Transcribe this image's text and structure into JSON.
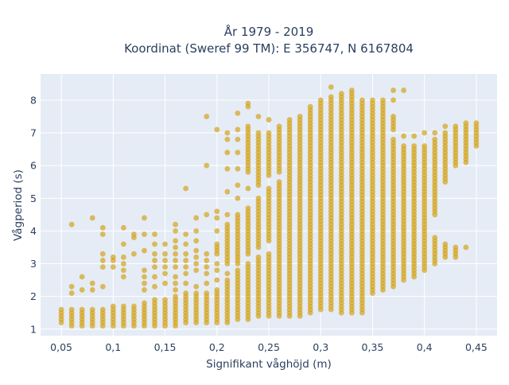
{
  "chart_data": {
    "type": "scatter",
    "title_line1": "År 1979 - 2019",
    "title_line2": "Koordinat (Sweref 99 TM): E 356747, N 6167804",
    "xlabel": "Signifikant våghöjd (m)",
    "ylabel": "Vågperiod (s)",
    "xlim": [
      0.03,
      0.47
    ],
    "ylim": [
      0.8,
      8.8
    ],
    "x_ticks": [
      0.05,
      0.1,
      0.15,
      0.2,
      0.25,
      0.3,
      0.35,
      0.4,
      0.45
    ],
    "x_tick_labels": [
      "0,05",
      "0,1",
      "0,15",
      "0,2",
      "0,25",
      "0,3",
      "0,35",
      "0,4",
      "0,45"
    ],
    "y_ticks": [
      1,
      2,
      3,
      4,
      5,
      6,
      7,
      8
    ],
    "y_tick_labels": [
      "1",
      "2",
      "3",
      "4",
      "5",
      "6",
      "7",
      "8"
    ],
    "grid": true,
    "marker_color": "#d4a520",
    "plot_background": "#e5ecf6",
    "columns": [
      {
        "x": 0.05,
        "segments": [
          [
            1.2,
            1.6
          ]
        ],
        "extra": []
      },
      {
        "x": 0.06,
        "segments": [
          [
            1.1,
            1.6
          ]
        ],
        "extra": [
          2.1,
          2.3,
          4.2
        ]
      },
      {
        "x": 0.07,
        "segments": [
          [
            1.1,
            1.6
          ]
        ],
        "extra": [
          2.2,
          2.6
        ]
      },
      {
        "x": 0.08,
        "segments": [
          [
            1.1,
            1.6
          ]
        ],
        "extra": [
          2.2,
          2.4,
          4.4
        ]
      },
      {
        "x": 0.09,
        "segments": [
          [
            1.1,
            1.6
          ]
        ],
        "extra": [
          2.3,
          2.9,
          3.1,
          3.3,
          3.9,
          4.1
        ]
      },
      {
        "x": 0.1,
        "segments": [
          [
            1.1,
            1.7
          ]
        ],
        "extra": [
          2.9,
          3.1,
          3.2
        ]
      },
      {
        "x": 0.11,
        "segments": [
          [
            1.1,
            1.7
          ]
        ],
        "extra": [
          2.6,
          2.8,
          3.0,
          3.2,
          3.6,
          4.1
        ]
      },
      {
        "x": 0.12,
        "segments": [
          [
            1.1,
            1.7
          ]
        ],
        "extra": [
          3.3,
          3.8,
          3.9
        ]
      },
      {
        "x": 0.13,
        "segments": [
          [
            1.1,
            1.8
          ]
        ],
        "extra": [
          2.2,
          2.4,
          2.6,
          2.8,
          3.4,
          3.9,
          4.4
        ]
      },
      {
        "x": 0.14,
        "segments": [
          [
            1.1,
            1.9
          ]
        ],
        "extra": [
          2.3,
          2.6,
          2.9,
          3.1,
          3.3,
          3.6,
          3.9
        ]
      },
      {
        "x": 0.15,
        "segments": [
          [
            1.1,
            1.9
          ]
        ],
        "extra": [
          2.4,
          2.7,
          2.9,
          3.1,
          3.3,
          3.6
        ]
      },
      {
        "x": 0.16,
        "segments": [
          [
            1.1,
            2.0
          ]
        ],
        "extra": [
          2.2,
          2.4,
          2.6,
          2.9,
          3.1,
          3.3,
          3.5,
          3.7,
          4.0,
          4.2
        ]
      },
      {
        "x": 0.17,
        "segments": [
          [
            1.2,
            2.1
          ]
        ],
        "extra": [
          2.4,
          2.7,
          2.9,
          3.1,
          3.3,
          3.6,
          3.9,
          5.3
        ]
      },
      {
        "x": 0.18,
        "segments": [
          [
            1.2,
            2.1
          ]
        ],
        "extra": [
          2.3,
          2.8,
          3.0,
          3.2,
          3.4,
          3.7,
          4.0,
          4.4
        ]
      },
      {
        "x": 0.19,
        "segments": [
          [
            1.2,
            2.1
          ]
        ],
        "extra": [
          2.4,
          2.7,
          2.9,
          3.1,
          3.3,
          4.5,
          6.0,
          7.5
        ]
      },
      {
        "x": 0.2,
        "segments": [
          [
            1.2,
            2.2
          ],
          [
            3.3,
            3.6
          ]
        ],
        "extra": [
          2.5,
          2.8,
          3.0,
          4.0,
          4.4,
          4.6,
          7.1
        ]
      },
      {
        "x": 0.21,
        "segments": [
          [
            1.2,
            2.5
          ],
          [
            3.0,
            4.2
          ]
        ],
        "extra": [
          2.7,
          4.5,
          5.2,
          5.9,
          6.4,
          6.8,
          7.0
        ]
      },
      {
        "x": 0.22,
        "segments": [
          [
            1.3,
            2.8
          ],
          [
            3.0,
            4.5
          ]
        ],
        "extra": [
          5.0,
          5.4,
          5.9,
          6.4,
          6.8,
          7.1,
          7.6
        ]
      },
      {
        "x": 0.23,
        "segments": [
          [
            1.3,
            3.0
          ],
          [
            3.3,
            4.7
          ],
          [
            5.8,
            7.2
          ]
        ],
        "extra": [
          5.3,
          7.8,
          7.9
        ]
      },
      {
        "x": 0.24,
        "segments": [
          [
            1.4,
            3.2
          ],
          [
            3.5,
            5.0
          ],
          [
            5.4,
            7.0
          ]
        ],
        "extra": [
          7.5
        ]
      },
      {
        "x": 0.25,
        "segments": [
          [
            1.4,
            3.3
          ],
          [
            3.7,
            5.3
          ],
          [
            5.7,
            7.0
          ]
        ],
        "extra": [
          7.4
        ]
      },
      {
        "x": 0.26,
        "segments": [
          [
            1.4,
            5.5
          ],
          [
            5.8,
            7.2
          ]
        ],
        "extra": []
      },
      {
        "x": 0.27,
        "segments": [
          [
            1.4,
            7.4
          ]
        ],
        "extra": []
      },
      {
        "x": 0.28,
        "segments": [
          [
            1.4,
            7.5
          ]
        ],
        "extra": []
      },
      {
        "x": 0.29,
        "segments": [
          [
            1.5,
            7.8
          ]
        ],
        "extra": []
      },
      {
        "x": 0.3,
        "segments": [
          [
            1.6,
            8.0
          ]
        ],
        "extra": []
      },
      {
        "x": 0.31,
        "segments": [
          [
            1.6,
            8.1
          ]
        ],
        "extra": [
          8.4
        ]
      },
      {
        "x": 0.32,
        "segments": [
          [
            1.5,
            8.2
          ]
        ],
        "extra": []
      },
      {
        "x": 0.33,
        "segments": [
          [
            1.5,
            8.3
          ]
        ],
        "extra": []
      },
      {
        "x": 0.34,
        "segments": [
          [
            1.5,
            8.0
          ]
        ],
        "extra": []
      },
      {
        "x": 0.35,
        "segments": [
          [
            2.1,
            8.0
          ]
        ],
        "extra": []
      },
      {
        "x": 0.36,
        "segments": [
          [
            2.2,
            7.9
          ]
        ],
        "extra": [
          8.0
        ]
      },
      {
        "x": 0.37,
        "segments": [
          [
            2.3,
            6.8
          ],
          [
            7.1,
            7.5
          ]
        ],
        "extra": [
          8.0,
          8.3
        ]
      },
      {
        "x": 0.38,
        "segments": [
          [
            2.5,
            6.6
          ]
        ],
        "extra": [
          6.9,
          8.3
        ]
      },
      {
        "x": 0.39,
        "segments": [
          [
            2.6,
            6.6
          ]
        ],
        "extra": [
          6.9
        ]
      },
      {
        "x": 0.4,
        "segments": [
          [
            2.8,
            6.6
          ]
        ],
        "extra": [
          7.0
        ]
      },
      {
        "x": 0.41,
        "segments": [
          [
            3.0,
            3.8
          ],
          [
            4.5,
            6.8
          ]
        ],
        "extra": [
          7.0
        ]
      },
      {
        "x": 0.42,
        "segments": [
          [
            3.2,
            3.6
          ],
          [
            5.5,
            7.0
          ]
        ],
        "extra": [
          7.2
        ]
      },
      {
        "x": 0.43,
        "segments": [
          [
            3.2,
            3.5
          ],
          [
            6.0,
            7.2
          ]
        ],
        "extra": []
      },
      {
        "x": 0.44,
        "segments": [
          [
            6.1,
            7.3
          ]
        ],
        "extra": [
          3.5
        ]
      },
      {
        "x": 0.45,
        "segments": [
          [
            6.6,
            7.3
          ]
        ],
        "extra": []
      }
    ]
  }
}
